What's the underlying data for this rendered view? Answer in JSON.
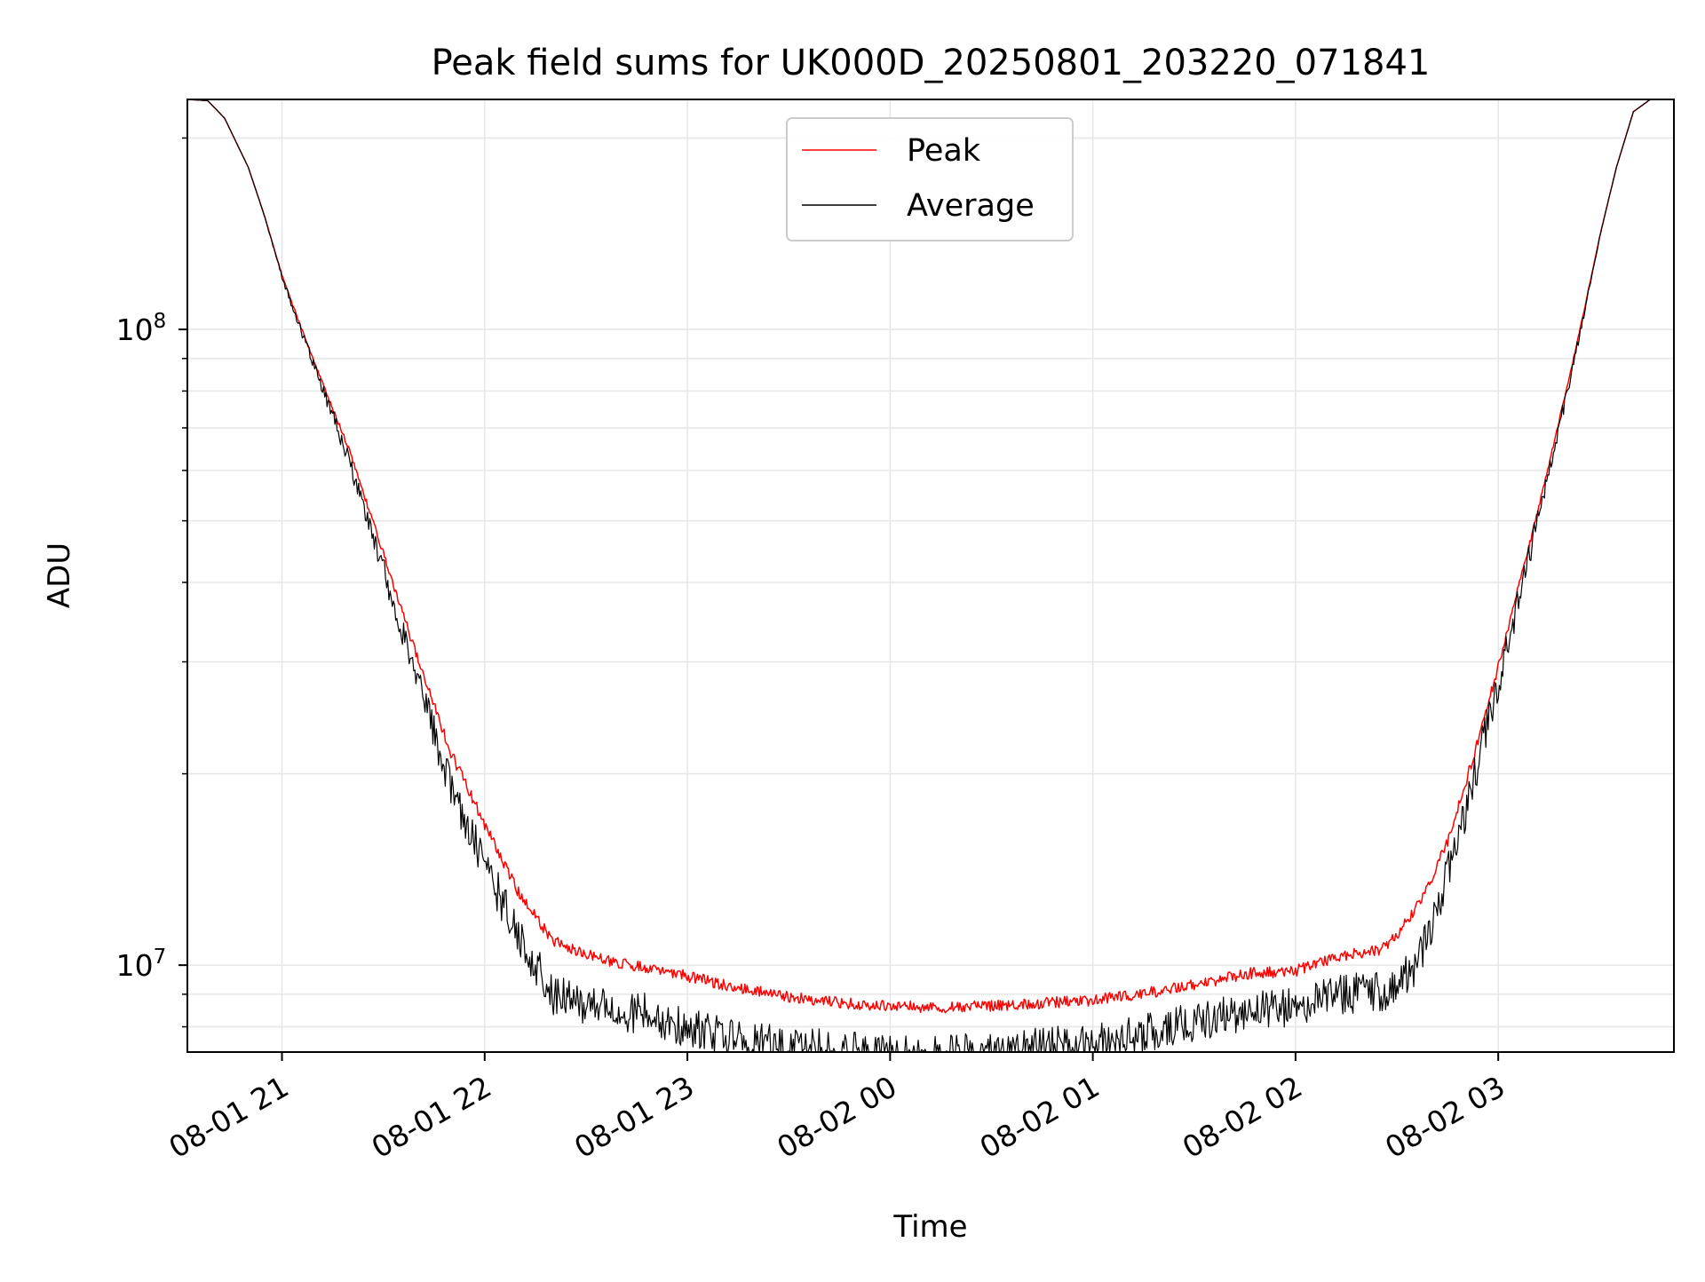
{
  "chart_data": {
    "type": "line",
    "title": "Peak field sums for UK000D_20250801_203220_071841",
    "xlabel": "Time",
    "ylabel": "ADU",
    "y_scale": "log",
    "ylim": [
      7300000,
      230000000
    ],
    "xlim": [
      "2025-08-01 20:32",
      "2025-08-02 03:52"
    ],
    "x_ticks": [
      "08-01 21",
      "08-01 22",
      "08-01 23",
      "08-02 00",
      "08-02 01",
      "08-02 02",
      "08-02 03"
    ],
    "y_ticks": [
      {
        "base": "10",
        "exp": "8",
        "value": 100000000
      },
      {
        "base": "10",
        "exp": "7",
        "value": 10000000
      }
    ],
    "y_minor_ticks": [
      8000000,
      9000000,
      20000000,
      30000000,
      40000000,
      50000000,
      60000000,
      70000000,
      80000000,
      90000000,
      200000000
    ],
    "grid": true,
    "legend_position": "top-center",
    "series": [
      {
        "name": "Peak",
        "color": "#ff0000",
        "x": [
          "2025-08-01 20:32",
          "2025-08-01 20:38",
          "2025-08-01 20:43",
          "2025-08-01 20:50",
          "2025-08-01 20:55",
          "2025-08-01 21:00",
          "2025-08-01 21:06",
          "2025-08-01 21:10",
          "2025-08-01 21:20",
          "2025-08-01 21:30",
          "2025-08-01 21:40",
          "2025-08-01 21:50",
          "2025-08-01 22:00",
          "2025-08-01 22:10",
          "2025-08-01 22:20",
          "2025-08-01 22:30",
          "2025-08-01 22:40",
          "2025-08-01 22:50",
          "2025-08-01 23:00",
          "2025-08-01 23:15",
          "2025-08-01 23:30",
          "2025-08-01 23:45",
          "2025-08-02 00:00",
          "2025-08-02 00:15",
          "2025-08-02 00:30",
          "2025-08-02 00:45",
          "2025-08-02 01:00",
          "2025-08-02 01:15",
          "2025-08-02 01:30",
          "2025-08-02 01:45",
          "2025-08-02 02:00",
          "2025-08-02 02:15",
          "2025-08-02 02:25",
          "2025-08-02 02:30",
          "2025-08-02 02:35",
          "2025-08-02 02:40",
          "2025-08-02 02:45",
          "2025-08-02 02:50",
          "2025-08-02 02:55",
          "2025-08-02 03:00",
          "2025-08-02 03:05",
          "2025-08-02 03:10",
          "2025-08-02 03:15",
          "2025-08-02 03:20",
          "2025-08-02 03:25",
          "2025-08-02 03:30",
          "2025-08-02 03:35",
          "2025-08-02 03:40",
          "2025-08-02 03:45",
          "2025-08-02 03:52"
        ],
        "y": [
          230000000,
          229000000,
          215000000,
          180000000,
          150000000,
          122000000,
          100000000,
          88000000,
          65000000,
          45000000,
          31000000,
          22000000,
          17000000,
          13300000,
          11200000,
          10600000,
          10300000,
          10100000,
          9800000,
          9400000,
          9100000,
          8900000,
          8800000,
          8750000,
          8800000,
          8900000,
          9000000,
          9200000,
          9500000,
          9900000,
          10000000,
          10600000,
          10800000,
          11400000,
          12400000,
          13800000,
          16000000,
          19500000,
          24000000,
          30000000,
          38000000,
          48000000,
          62000000,
          80000000,
          105000000,
          140000000,
          180000000,
          220000000,
          230000000,
          230000000
        ]
      },
      {
        "name": "Average",
        "color": "#000000",
        "x": [
          "2025-08-01 20:32",
          "2025-08-01 20:38",
          "2025-08-01 20:43",
          "2025-08-01 20:50",
          "2025-08-01 20:55",
          "2025-08-01 21:00",
          "2025-08-01 21:06",
          "2025-08-01 21:10",
          "2025-08-01 21:20",
          "2025-08-01 21:30",
          "2025-08-01 21:40",
          "2025-08-01 21:50",
          "2025-08-01 22:00",
          "2025-08-01 22:10",
          "2025-08-01 22:20",
          "2025-08-01 22:30",
          "2025-08-01 22:40",
          "2025-08-01 22:50",
          "2025-08-01 23:00",
          "2025-08-01 23:15",
          "2025-08-01 23:30",
          "2025-08-01 23:45",
          "2025-08-02 00:00",
          "2025-08-02 00:15",
          "2025-08-02 00:30",
          "2025-08-02 00:45",
          "2025-08-02 01:00",
          "2025-08-02 01:15",
          "2025-08-02 01:30",
          "2025-08-02 01:45",
          "2025-08-02 02:00",
          "2025-08-02 02:15",
          "2025-08-02 02:25",
          "2025-08-02 02:30",
          "2025-08-02 02:35",
          "2025-08-02 02:40",
          "2025-08-02 02:45",
          "2025-08-02 02:50",
          "2025-08-02 02:55",
          "2025-08-02 03:00",
          "2025-08-02 03:05",
          "2025-08-02 03:10",
          "2025-08-02 03:15",
          "2025-08-02 03:20",
          "2025-08-02 03:25",
          "2025-08-02 03:30",
          "2025-08-02 03:35",
          "2025-08-02 03:40",
          "2025-08-02 03:45",
          "2025-08-02 03:52"
        ],
        "y": [
          230000000,
          229000000,
          215000000,
          180000000,
          150000000,
          122000000,
          100000000,
          88000000,
          64000000,
          44000000,
          30000000,
          20500000,
          15500000,
          12000000,
          9700000,
          9300000,
          9150000,
          9000000,
          8600000,
          8200000,
          8000000,
          7900000,
          7750000,
          7750000,
          7850000,
          8000000,
          8100000,
          8400000,
          8800000,
          9100000,
          9300000,
          9700000,
          9800000,
          10000000,
          10700000,
          12200000,
          15000000,
          18500000,
          23500000,
          29500000,
          37500000,
          48000000,
          62000000,
          80000000,
          105000000,
          140000000,
          180000000,
          220000000,
          230000000,
          230000000
        ]
      }
    ]
  }
}
